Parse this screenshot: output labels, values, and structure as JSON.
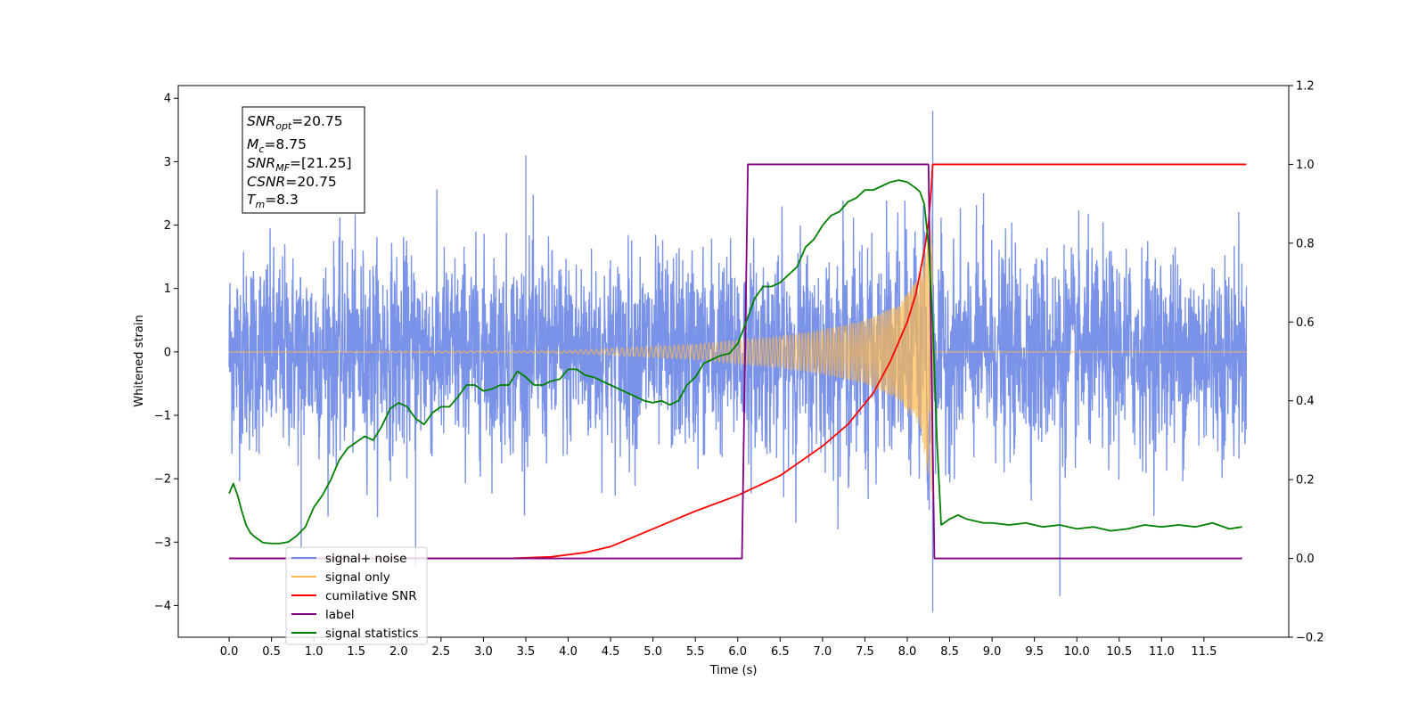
{
  "chart_data": {
    "type": "line",
    "xlabel": "Time (s)",
    "ylabel": "Whitened strain",
    "xlim": [
      -0.6,
      12.5
    ],
    "ylim": [
      -4.5,
      4.2
    ],
    "y2lim": [
      -0.2,
      1.2
    ],
    "x_ticks": [
      "0.0",
      "0.5",
      "1.0",
      "1.5",
      "2.0",
      "2.5",
      "3.0",
      "3.5",
      "4.0",
      "4.5",
      "5.0",
      "5.5",
      "6.0",
      "6.5",
      "7.0",
      "7.5",
      "8.0",
      "8.5",
      "9.0",
      "9.5",
      "10.0",
      "10.5",
      "11.0",
      "11.5"
    ],
    "y_ticks": [
      "4",
      "3",
      "2",
      "1",
      "0",
      "−1",
      "−2",
      "−3",
      "−4"
    ],
    "y2_ticks": [
      "1.2",
      "1.0",
      "0.8",
      "0.6",
      "0.4",
      "0.2",
      "0.0",
      "−0.2"
    ],
    "grid": false,
    "legend_position": "lower-left",
    "colors": {
      "signal_noise": "#6f8ae6",
      "signal_only": "#ffb84d",
      "cumulative_snr": "#ff0000",
      "label": "#800080",
      "signal_statistics": "#008000"
    },
    "series": [
      {
        "name": "signal+ noise",
        "axis": "left",
        "x_range": [
          0.0,
          12.0
        ],
        "envelope_typical": 1.4,
        "peaks": [
          [
            3.5,
            3.1
          ],
          [
            8.3,
            3.8
          ],
          [
            8.3,
            -4.1
          ],
          [
            9.8,
            -3.85
          ],
          [
            2.2,
            -3.4
          ],
          [
            0.85,
            -3.1
          ],
          [
            8.9,
            2.5
          ]
        ]
      },
      {
        "name": "signal only",
        "axis": "left",
        "x_range": [
          0.0,
          12.0
        ],
        "chirp_amplitude": [
          [
            0.0,
            0.0
          ],
          [
            4.0,
            0.02
          ],
          [
            5.5,
            0.12
          ],
          [
            6.5,
            0.25
          ],
          [
            7.0,
            0.35
          ],
          [
            7.5,
            0.5
          ],
          [
            7.9,
            0.75
          ],
          [
            8.15,
            1.2
          ],
          [
            8.25,
            2.0
          ],
          [
            8.29,
            2.3
          ]
        ]
      },
      {
        "name": "cumilative SNR",
        "axis": "right",
        "points": [
          [
            0.0,
            0.0
          ],
          [
            3.3,
            0.0
          ],
          [
            3.8,
            0.004
          ],
          [
            4.2,
            0.015
          ],
          [
            4.5,
            0.03
          ],
          [
            5.0,
            0.075
          ],
          [
            5.5,
            0.12
          ],
          [
            6.0,
            0.16
          ],
          [
            6.5,
            0.21
          ],
          [
            7.0,
            0.285
          ],
          [
            7.3,
            0.34
          ],
          [
            7.6,
            0.42
          ],
          [
            7.8,
            0.5
          ],
          [
            8.0,
            0.6
          ],
          [
            8.1,
            0.67
          ],
          [
            8.2,
            0.78
          ],
          [
            8.25,
            0.85
          ],
          [
            8.28,
            0.93
          ],
          [
            8.3,
            1.0
          ],
          [
            12.0,
            1.0
          ]
        ]
      },
      {
        "name": "label",
        "axis": "right",
        "points": [
          [
            0.0,
            0.0
          ],
          [
            6.05,
            0.0
          ],
          [
            6.12,
            1.0
          ],
          [
            8.25,
            1.0
          ],
          [
            8.32,
            0.0
          ],
          [
            11.95,
            0.0
          ]
        ]
      },
      {
        "name": "signal statistics",
        "axis": "right",
        "points": [
          [
            0.0,
            0.165
          ],
          [
            0.05,
            0.19
          ],
          [
            0.1,
            0.16
          ],
          [
            0.15,
            0.12
          ],
          [
            0.2,
            0.085
          ],
          [
            0.25,
            0.065
          ],
          [
            0.3,
            0.055
          ],
          [
            0.4,
            0.04
          ],
          [
            0.5,
            0.038
          ],
          [
            0.6,
            0.038
          ],
          [
            0.7,
            0.042
          ],
          [
            0.8,
            0.058
          ],
          [
            0.9,
            0.08
          ],
          [
            1.0,
            0.13
          ],
          [
            1.1,
            0.16
          ],
          [
            1.2,
            0.2
          ],
          [
            1.3,
            0.25
          ],
          [
            1.4,
            0.28
          ],
          [
            1.5,
            0.295
          ],
          [
            1.6,
            0.31
          ],
          [
            1.7,
            0.3
          ],
          [
            1.8,
            0.335
          ],
          [
            1.9,
            0.38
          ],
          [
            2.0,
            0.395
          ],
          [
            2.1,
            0.385
          ],
          [
            2.2,
            0.355
          ],
          [
            2.3,
            0.34
          ],
          [
            2.4,
            0.37
          ],
          [
            2.5,
            0.385
          ],
          [
            2.6,
            0.385
          ],
          [
            2.7,
            0.41
          ],
          [
            2.8,
            0.44
          ],
          [
            2.9,
            0.44
          ],
          [
            3.0,
            0.425
          ],
          [
            3.1,
            0.43
          ],
          [
            3.2,
            0.44
          ],
          [
            3.3,
            0.44
          ],
          [
            3.4,
            0.475
          ],
          [
            3.5,
            0.46
          ],
          [
            3.6,
            0.44
          ],
          [
            3.7,
            0.44
          ],
          [
            3.8,
            0.45
          ],
          [
            3.9,
            0.455
          ],
          [
            4.0,
            0.48
          ],
          [
            4.1,
            0.48
          ],
          [
            4.2,
            0.465
          ],
          [
            4.3,
            0.46
          ],
          [
            4.4,
            0.45
          ],
          [
            4.5,
            0.44
          ],
          [
            4.6,
            0.43
          ],
          [
            4.7,
            0.42
          ],
          [
            4.8,
            0.41
          ],
          [
            4.9,
            0.4
          ],
          [
            5.0,
            0.395
          ],
          [
            5.1,
            0.4
          ],
          [
            5.2,
            0.39
          ],
          [
            5.3,
            0.4
          ],
          [
            5.4,
            0.44
          ],
          [
            5.5,
            0.46
          ],
          [
            5.6,
            0.495
          ],
          [
            5.7,
            0.505
          ],
          [
            5.8,
            0.515
          ],
          [
            5.9,
            0.52
          ],
          [
            6.0,
            0.545
          ],
          [
            6.1,
            0.6
          ],
          [
            6.2,
            0.66
          ],
          [
            6.3,
            0.69
          ],
          [
            6.4,
            0.69
          ],
          [
            6.5,
            0.7
          ],
          [
            6.6,
            0.72
          ],
          [
            6.7,
            0.74
          ],
          [
            6.8,
            0.79
          ],
          [
            6.9,
            0.81
          ],
          [
            7.0,
            0.845
          ],
          [
            7.1,
            0.87
          ],
          [
            7.2,
            0.88
          ],
          [
            7.3,
            0.905
          ],
          [
            7.4,
            0.915
          ],
          [
            7.5,
            0.935
          ],
          [
            7.6,
            0.935
          ],
          [
            7.7,
            0.945
          ],
          [
            7.8,
            0.955
          ],
          [
            7.9,
            0.96
          ],
          [
            8.0,
            0.955
          ],
          [
            8.1,
            0.94
          ],
          [
            8.15,
            0.93
          ],
          [
            8.2,
            0.9
          ],
          [
            8.25,
            0.8
          ],
          [
            8.3,
            0.6
          ],
          [
            8.35,
            0.3
          ],
          [
            8.4,
            0.085
          ],
          [
            8.5,
            0.1
          ],
          [
            8.6,
            0.11
          ],
          [
            8.7,
            0.1
          ],
          [
            8.8,
            0.095
          ],
          [
            8.9,
            0.09
          ],
          [
            9.0,
            0.09
          ],
          [
            9.2,
            0.085
          ],
          [
            9.4,
            0.09
          ],
          [
            9.6,
            0.08
          ],
          [
            9.8,
            0.085
          ],
          [
            10.0,
            0.075
          ],
          [
            10.2,
            0.08
          ],
          [
            10.4,
            0.07
          ],
          [
            10.6,
            0.075
          ],
          [
            10.8,
            0.085
          ],
          [
            11.0,
            0.08
          ],
          [
            11.2,
            0.085
          ],
          [
            11.4,
            0.08
          ],
          [
            11.6,
            0.09
          ],
          [
            11.8,
            0.075
          ],
          [
            11.95,
            0.08
          ]
        ]
      }
    ],
    "legend": [
      "signal+ noise",
      "signal only",
      "cumilative SNR",
      "label",
      "signal statistics"
    ],
    "annotation": {
      "snr_opt": {
        "base": "SNR",
        "sub": "opt",
        "value": "=20.75"
      },
      "mc": {
        "base": "M",
        "sub": "c",
        "value": "=8.75"
      },
      "snr_mf": {
        "base": "SNR",
        "sub": "MF",
        "value": "=[21.25]"
      },
      "csnr": {
        "base": "CSNR",
        "value": "=20.75"
      },
      "tm": {
        "base": "T",
        "sub": "m",
        "value": "=8.3"
      }
    }
  }
}
